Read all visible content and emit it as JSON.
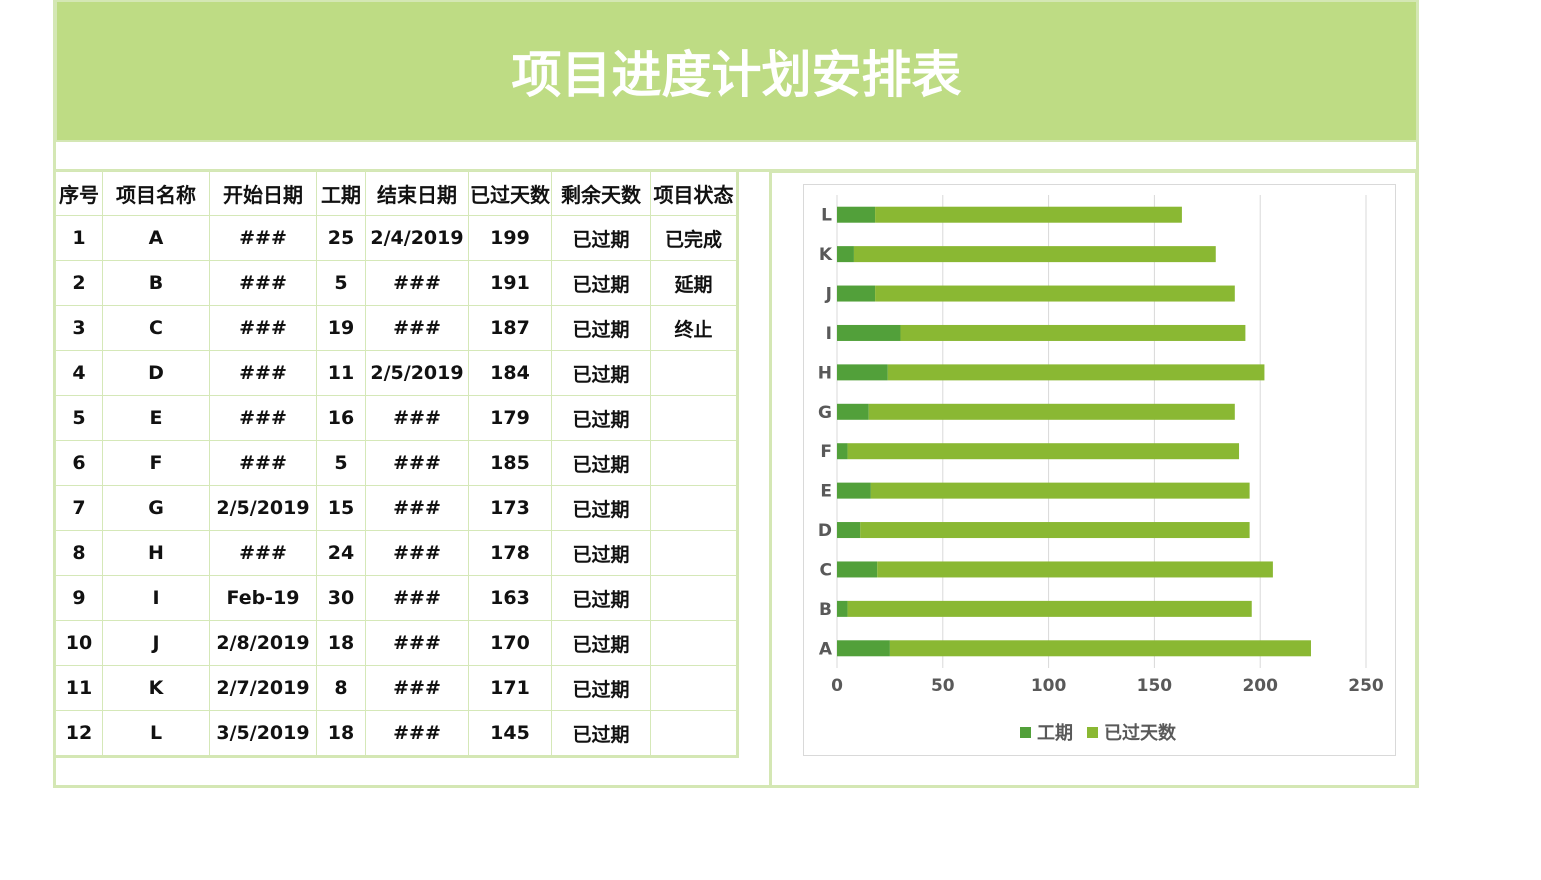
{
  "title": "项目进度计划安排表",
  "table": {
    "headers": [
      "序号",
      "项目名称",
      "开始日期",
      "工期",
      "结束日期",
      "已过天数",
      "剩余天数",
      "项目状态"
    ],
    "rows": [
      [
        "1",
        "A",
        "###",
        "25",
        "2/4/2019",
        "199",
        "已过期",
        "已完成"
      ],
      [
        "2",
        "B",
        "###",
        "5",
        "###",
        "191",
        "已过期",
        "延期"
      ],
      [
        "3",
        "C",
        "###",
        "19",
        "###",
        "187",
        "已过期",
        "终止"
      ],
      [
        "4",
        "D",
        "###",
        "11",
        "2/5/2019",
        "184",
        "已过期",
        ""
      ],
      [
        "5",
        "E",
        "###",
        "16",
        "###",
        "179",
        "已过期",
        ""
      ],
      [
        "6",
        "F",
        "###",
        "5",
        "###",
        "185",
        "已过期",
        ""
      ],
      [
        "7",
        "G",
        "2/5/2019",
        "15",
        "###",
        "173",
        "已过期",
        ""
      ],
      [
        "8",
        "H",
        "###",
        "24",
        "###",
        "178",
        "已过期",
        ""
      ],
      [
        "9",
        "I",
        "Feb-19",
        "30",
        "###",
        "163",
        "已过期",
        ""
      ],
      [
        "10",
        "J",
        "2/8/2019",
        "18",
        "###",
        "170",
        "已过期",
        ""
      ],
      [
        "11",
        "K",
        "2/7/2019",
        "8",
        "###",
        "171",
        "已过期",
        ""
      ],
      [
        "12",
        "L",
        "3/5/2019",
        "18",
        "###",
        "145",
        "已过期",
        ""
      ]
    ]
  },
  "chart_data": {
    "type": "bar",
    "orientation": "horizontal",
    "stacked": true,
    "categories": [
      "A",
      "B",
      "C",
      "D",
      "E",
      "F",
      "G",
      "H",
      "I",
      "J",
      "K",
      "L"
    ],
    "series": [
      {
        "name": "工期",
        "color": "#52a03a",
        "values": [
          25,
          5,
          19,
          11,
          16,
          5,
          15,
          24,
          30,
          18,
          8,
          18
        ]
      },
      {
        "name": "已过天数",
        "color": "#8ab833",
        "values": [
          199,
          191,
          187,
          184,
          179,
          185,
          173,
          178,
          163,
          170,
          171,
          145
        ]
      }
    ],
    "xlim": [
      0,
      250
    ],
    "xticks": [
      "0",
      "50",
      "100",
      "150",
      "200",
      "250"
    ],
    "grid": true,
    "legend_position": "bottom"
  }
}
